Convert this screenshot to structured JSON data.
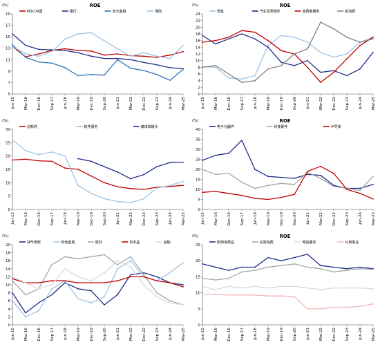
{
  "x_tick_labels": [
    "Jun-15",
    "Mar-16",
    "Dec-16",
    "Sep-17",
    "Jun-18",
    "Mar-19",
    "Dec-19",
    "Sep-20",
    "Jun-21",
    "Mar-22",
    "Dec-22",
    "Sep-23",
    "Jun-24",
    "Mar-25"
  ],
  "chart_data": [
    {
      "type": "line",
      "title": "ROE",
      "unit_label": "(%)",
      "ylim": [
        5,
        19
      ],
      "yticks": [
        5,
        7,
        9,
        11,
        13,
        15,
        17,
        19
      ],
      "x": [
        "Jun-15",
        "Mar-16",
        "Dec-16",
        "Sep-17",
        "Jun-18",
        "Mar-19",
        "Dec-19",
        "Sep-20",
        "Jun-21",
        "Mar-22",
        "Dec-22",
        "Sep-23",
        "Jun-24",
        "Mar-25"
      ],
      "series": [
        {
          "name": "MSCI中国",
          "color": "#c00000",
          "values": [
            13.3,
            11.5,
            12.0,
            12.6,
            12.9,
            12.6,
            12.5,
            11.8,
            12.0,
            11.7,
            11.6,
            11.4,
            11.8,
            12.4
          ]
        },
        {
          "name": "银行",
          "color": "#1f2d86",
          "values": [
            15.5,
            13.5,
            12.8,
            12.7,
            12.6,
            12.2,
            11.6,
            11.2,
            11.2,
            11.0,
            10.5,
            10.1,
            9.6,
            9.4
          ]
        },
        {
          "name": "多元金融",
          "color": "#2e75b6",
          "values": [
            13.6,
            11.4,
            10.6,
            10.4,
            9.6,
            8.2,
            8.4,
            8.3,
            11.0,
            9.5,
            9.1,
            8.4,
            7.4,
            9.3
          ]
        },
        {
          "name": "保险",
          "color": "#9dc3e6",
          "values": [
            13.3,
            12.0,
            11.6,
            12.4,
            14.6,
            15.5,
            15.7,
            14.3,
            12.9,
            11.6,
            12.2,
            11.6,
            11.2,
            13.5
          ]
        }
      ]
    },
    {
      "type": "line",
      "title": "ROE",
      "unit_label": "(%)",
      "ylim": [
        0,
        24
      ],
      "yticks": [
        0,
        2,
        4,
        6,
        8,
        10,
        12,
        14,
        16,
        18,
        20,
        22,
        24
      ],
      "x": [
        "Jun-15",
        "Mar-16",
        "Dec-16",
        "Sep-17",
        "Jun-18",
        "Mar-19",
        "Dec-19",
        "Sep-20",
        "Jun-21",
        "Mar-22",
        "Dec-22",
        "Sep-23",
        "Jun-24",
        "Mar-25"
      ],
      "series": [
        {
          "name": "零售",
          "color": "#9dc3e6",
          "values": [
            8.2,
            8.0,
            4.8,
            4.5,
            5.5,
            14.5,
            17.5,
            17.0,
            15.5,
            12.5,
            11.0,
            12.0,
            15.5,
            17.0
          ]
        },
        {
          "name": "汽车及零部件",
          "color": "#1f2d86",
          "values": [
            17.5,
            15.0,
            16.5,
            18.0,
            16.5,
            14.0,
            9.5,
            8.5,
            10.0,
            6.5,
            7.0,
            5.5,
            7.5,
            12.5
          ]
        },
        {
          "name": "消费者服务",
          "color": "#c00000",
          "values": [
            15.5,
            16.0,
            17.0,
            19.0,
            18.5,
            16.0,
            13.0,
            12.0,
            8.0,
            3.5,
            6.5,
            10.5,
            14.5,
            17.0
          ]
        },
        {
          "name": "新消费",
          "color": "#7f7f7f",
          "values": [
            8.0,
            8.5,
            6.0,
            3.5,
            4.0,
            7.5,
            8.5,
            12.0,
            13.5,
            21.5,
            19.5,
            17.0,
            15.5,
            16.5
          ]
        }
      ]
    },
    {
      "type": "line",
      "title": "",
      "unit_label": "(%)",
      "ylim": [
        0,
        30
      ],
      "yticks": [
        0,
        5,
        10,
        15,
        20,
        25,
        30
      ],
      "x": [
        "Jun-15",
        "Mar-16",
        "Dec-16",
        "Sep-17",
        "Jun-18",
        "Mar-19",
        "Dec-19",
        "Sep-20",
        "Jun-21",
        "Mar-22",
        "Dec-22",
        "Sep-23",
        "Jun-24",
        "Mar-25"
      ],
      "series": [
        {
          "name": "创新药",
          "color": "#c00000",
          "values": [
            18.5,
            18.8,
            18.2,
            18.0,
            15.5,
            15.0,
            12.5,
            10.0,
            8.5,
            7.8,
            7.5,
            8.3,
            8.6,
            9.0
          ]
        },
        {
          "name": "软件服务",
          "color": "#9dc3e6",
          "values": [
            26.0,
            22.0,
            20.5,
            21.5,
            20.0,
            9.0,
            6.0,
            4.0,
            3.0,
            2.5,
            4.0,
            8.0,
            9.0,
            10.5
          ]
        },
        {
          "name": "媒体和娱乐",
          "color": "#1f2d86",
          "values": [
            null,
            null,
            null,
            null,
            null,
            19.0,
            18.0,
            16.0,
            14.0,
            11.5,
            13.0,
            16.0,
            17.5,
            17.7
          ]
        }
      ]
    },
    {
      "type": "line",
      "title": "ROE",
      "unit_label": "(%)",
      "ylim": [
        0,
        40
      ],
      "yticks": [
        0,
        5,
        10,
        15,
        20,
        25,
        30,
        35,
        40
      ],
      "x": [
        "Jun-15",
        "Mar-16",
        "Dec-16",
        "Sep-17",
        "Jun-18",
        "Mar-19",
        "Dec-19",
        "Sep-20",
        "Jun-21",
        "Mar-22",
        "Dec-22",
        "Sep-23",
        "Jun-24",
        "Mar-25"
      ],
      "series": [
        {
          "name": "电子元器件",
          "color": "#1f2d86",
          "values": [
            24.5,
            27.0,
            28.0,
            34.5,
            20.0,
            16.5,
            16.0,
            15.5,
            17.5,
            17.0,
            12.0,
            10.5,
            10.5,
            12.5
          ]
        },
        {
          "name": "科技硬件",
          "color": "#a6a6a6",
          "values": [
            20.0,
            17.5,
            18.0,
            13.5,
            10.5,
            12.0,
            13.0,
            12.5,
            18.5,
            15.5,
            11.5,
            10.5,
            9.5,
            16.5
          ]
        },
        {
          "name": "半导体",
          "color": "#c00000",
          "values": [
            8.5,
            9.0,
            8.0,
            7.0,
            5.5,
            5.0,
            6.0,
            7.5,
            19.0,
            21.5,
            18.0,
            10.0,
            8.0,
            5.2
          ]
        }
      ]
    },
    {
      "type": "line",
      "title": "",
      "unit_label": "(%)",
      "ylim": [
        0,
        20
      ],
      "yticks": [
        0,
        2,
        4,
        6,
        8,
        10,
        12,
        14,
        16,
        18,
        20
      ],
      "x": [
        "Jun-15",
        "Mar-16",
        "Dec-16",
        "Sep-17",
        "Jun-18",
        "Mar-19",
        "Dec-19",
        "Sep-20",
        "Jun-21",
        "Mar-22",
        "Dec-22",
        "Sep-23",
        "Jun-24",
        "Mar-25"
      ],
      "series": [
        {
          "name": "油气煤炭",
          "color": "#1f2d86",
          "values": [
            8.0,
            3.0,
            5.5,
            7.5,
            10.5,
            9.0,
            8.5,
            5.0,
            7.5,
            12.5,
            13.0,
            12.0,
            10.5,
            10.0
          ]
        },
        {
          "name": "有色金属",
          "color": "#9dc3e6",
          "values": [
            6.0,
            2.0,
            3.5,
            9.0,
            11.0,
            6.5,
            5.5,
            7.0,
            14.0,
            16.0,
            12.0,
            11.0,
            13.0,
            15.5
          ]
        },
        {
          "name": "建材",
          "color": "#a6a6a6",
          "values": [
            11.0,
            7.5,
            9.0,
            15.0,
            17.0,
            16.5,
            17.0,
            17.5,
            15.0,
            17.0,
            12.5,
            8.0,
            6.0,
            5.0
          ]
        },
        {
          "name": "资本品",
          "color": "#c00000",
          "values": [
            11.5,
            10.5,
            10.5,
            11.0,
            11.0,
            10.5,
            10.5,
            10.5,
            11.0,
            12.0,
            12.0,
            11.0,
            10.5,
            9.5
          ]
        },
        {
          "name": "运输",
          "color": "#d9d9d9",
          "values": [
            12.0,
            10.5,
            9.0,
            10.0,
            14.0,
            12.0,
            11.0,
            13.0,
            16.0,
            14.5,
            10.0,
            7.0,
            5.5,
            5.0
          ]
        }
      ]
    },
    {
      "type": "line",
      "title": "ROE",
      "unit_label": "(%)",
      "ylim": [
        0,
        25
      ],
      "yticks": [
        0,
        5,
        10,
        15,
        20,
        25
      ],
      "x": [
        "Jun-15",
        "Mar-16",
        "Dec-16",
        "Sep-17",
        "Jun-18",
        "Mar-19",
        "Dec-19",
        "Sep-20",
        "Jun-21",
        "Mar-22",
        "Dec-22",
        "Sep-23",
        "Jun-24",
        "Mar-25"
      ],
      "series": [
        {
          "name": "耐用消费品",
          "color": "#1f2d86",
          "values": [
            19.0,
            18.0,
            17.0,
            18.0,
            18.0,
            21.0,
            20.0,
            21.0,
            22.0,
            18.5,
            18.0,
            17.5,
            18.0,
            17.5
          ]
        },
        {
          "name": "必需消费",
          "color": "#a6a6a6",
          "values": [
            14.5,
            14.0,
            14.5,
            16.5,
            17.0,
            18.0,
            18.5,
            19.0,
            18.0,
            17.5,
            16.5,
            17.0,
            17.5,
            17.3
          ]
        },
        {
          "name": "电信服务",
          "color": "#d9d9d9",
          "values": [
            12.0,
            11.0,
            12.0,
            11.5,
            12.0,
            11.5,
            12.0,
            12.0,
            11.5,
            11.0,
            11.5,
            11.5,
            11.5,
            11.2
          ]
        },
        {
          "name": "公用事业",
          "color": "#f4b6b6",
          "values": [
            9.5,
            9.5,
            9.3,
            9.3,
            9.3,
            9.0,
            9.0,
            8.8,
            5.0,
            5.0,
            5.5,
            5.5,
            5.8,
            6.5
          ]
        }
      ]
    }
  ]
}
